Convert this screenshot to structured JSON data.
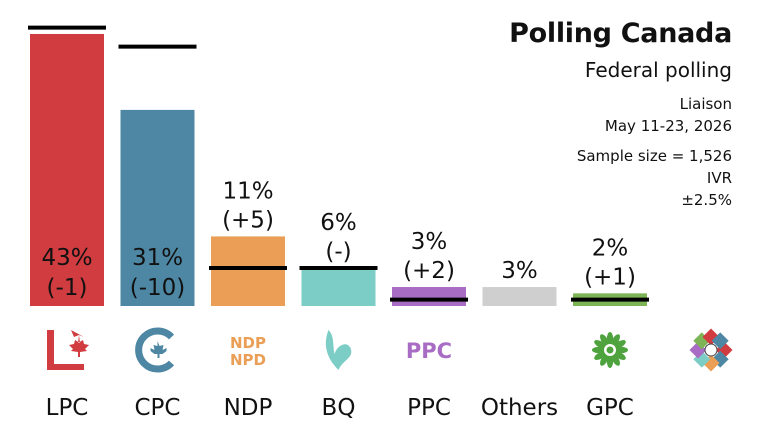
{
  "header": {
    "title": "Polling Canada",
    "subtitle": "Federal polling",
    "pollster": "Liaison",
    "dates": "May 11-23, 2026",
    "sample": "Sample size = 1,526",
    "method": "IVR",
    "margin": "±2.5%"
  },
  "chart_data": {
    "type": "bar",
    "categories": [
      "LPC",
      "CPC",
      "NDP",
      "BQ",
      "PPC",
      "Others",
      "GPC"
    ],
    "values": [
      43,
      31,
      11,
      6,
      3,
      3,
      2
    ],
    "value_labels": [
      "43%",
      "31%",
      "11%",
      "6%",
      "3%",
      "3%",
      "2%"
    ],
    "change_labels": [
      "(-1)",
      "(-10)",
      "(+5)",
      "(-)",
      "(+2)",
      "",
      "(+1)"
    ],
    "previous_values": [
      44,
      41,
      6,
      6,
      1,
      null,
      1
    ],
    "colors": [
      "#d03c3f",
      "#4d87a3",
      "#eb9e55",
      "#7bcdc6",
      "#a86cc4",
      "#cfcfcf",
      "#7db455"
    ],
    "ylim": [
      0,
      46
    ],
    "previous_marker": "black line"
  },
  "logos": [
    {
      "party": "LPC",
      "icon": "lpc-logo-icon"
    },
    {
      "party": "CPC",
      "icon": "cpc-logo-icon",
      "text": "C"
    },
    {
      "party": "NDP",
      "icon": "ndp-logo-icon",
      "text": "NDP NPD"
    },
    {
      "party": "BQ",
      "icon": "bq-logo-icon"
    },
    {
      "party": "PPC",
      "icon": "ppc-logo-icon",
      "text": "PPC"
    },
    {
      "party": "GPC",
      "icon": "gpc-logo-icon"
    },
    {
      "party": "Polling Canada",
      "icon": "polling-canada-logo-icon"
    }
  ]
}
